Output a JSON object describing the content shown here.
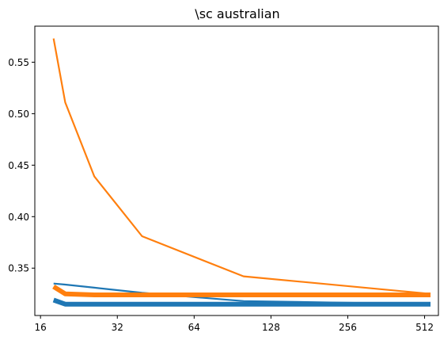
{
  "chart_data": {
    "type": "line",
    "title": "\\sc australian",
    "xlabel": "",
    "ylabel": "",
    "x_scale": "log2",
    "xlim": [
      15.2,
      580
    ],
    "ylim": [
      0.304,
      0.585
    ],
    "x_ticks": [
      16,
      32,
      64,
      128,
      256,
      512
    ],
    "x_tick_labels": [
      "16",
      "32",
      "64",
      "128",
      "256",
      "512"
    ],
    "y_ticks": [
      0.35,
      0.4,
      0.45,
      0.5,
      0.55
    ],
    "y_tick_labels": [
      "0.35",
      "0.40",
      "0.45",
      "0.50",
      "0.55"
    ],
    "grid": false,
    "legend": "none",
    "series": [
      {
        "color": "#1f77b4",
        "line_style": "thin",
        "x": [
          18,
          20,
          26,
          40,
          100,
          540
        ],
        "values": [
          0.335,
          0.334,
          0.331,
          0.326,
          0.318,
          0.315
        ]
      },
      {
        "color": "#1f77b4",
        "line_style": "thick",
        "x": [
          18,
          20,
          26,
          40,
          100,
          540
        ],
        "values": [
          0.319,
          0.315,
          0.315,
          0.315,
          0.315,
          0.315
        ]
      },
      {
        "color": "#ff7f0e",
        "line_style": "thin",
        "x": [
          18,
          20,
          26,
          40,
          100,
          540
        ],
        "values": [
          0.573,
          0.511,
          0.439,
          0.381,
          0.342,
          0.325
        ]
      },
      {
        "color": "#ff7f0e",
        "line_style": "thick",
        "x": [
          18,
          20,
          26,
          40,
          100,
          540
        ],
        "values": [
          0.332,
          0.325,
          0.324,
          0.324,
          0.324,
          0.324
        ]
      }
    ]
  }
}
